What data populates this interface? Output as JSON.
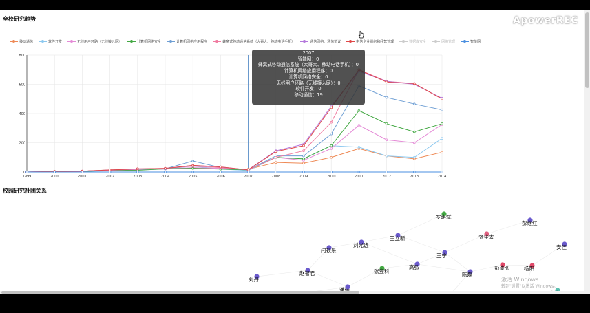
{
  "trend_title": "全校研究趋势",
  "society_title": "校园研究社团关系",
  "watermark": "ApowerREC",
  "windows_activation": {
    "line1": "激活 Windows",
    "line2": "转到\"设置\"以激活 Windows。"
  },
  "legend": [
    {
      "label": "移动通信",
      "color": "#ee8a56",
      "active": true
    },
    {
      "label": "软件开发",
      "color": "#8cc8ef",
      "active": true
    },
    {
      "label": "无线用户环路（无线接入网）",
      "color": "#e48ad6",
      "active": true
    },
    {
      "label": "计算机网络安全",
      "color": "#43a843",
      "active": true
    },
    {
      "label": "计算机网络应用程序",
      "color": "#6f9fd4",
      "active": true
    },
    {
      "label": "蜂窝式移动通信系统（大哥大、移动电话手机）",
      "color": "#f07aa0",
      "active": true
    },
    {
      "label": "通信网络、通信协议",
      "color": "#b478dc",
      "active": true
    },
    {
      "label": "电信企业组织和经营管理",
      "color": "#e04848",
      "active": true
    },
    {
      "label": "数据库安全",
      "color": "#cccccc",
      "active": false
    },
    {
      "label": "网络管理",
      "color": "#cccccc",
      "active": false
    },
    {
      "label": "智能网",
      "color": "#4a8fe0",
      "active": true
    }
  ],
  "tooltip": {
    "year": "2007",
    "lines": [
      "智能网：0",
      "蜂窝式移动通信系统（大哥大、移动电话手机）：0",
      "计算机网络应用程序：0",
      "计算机网络安全：0",
      "无线用户环路（无线接入网）：0",
      "软件开发：0",
      "移动通信：19"
    ]
  },
  "chart_data": {
    "type": "line",
    "title": "全校研究趋势",
    "x": [
      "1999",
      "2000",
      "2001",
      "2002",
      "2003",
      "2004",
      "2005",
      "2006",
      "2007",
      "2008",
      "2009",
      "2010",
      "2011",
      "2012",
      "2013",
      "2014"
    ],
    "ylim": [
      0,
      800
    ],
    "yticks": [
      "0",
      "200",
      "400",
      "600",
      "800"
    ],
    "grid": true,
    "legend_position": "top",
    "series": [
      {
        "name": "移动通信",
        "color": "#ee8a56",
        "values": [
          0,
          5,
          6,
          15,
          20,
          25,
          25,
          25,
          19,
          65,
          60,
          100,
          160,
          110,
          90,
          135
        ]
      },
      {
        "name": "软件开发",
        "color": "#8cc8ef",
        "values": [
          0,
          2,
          3,
          8,
          15,
          20,
          40,
          20,
          10,
          100,
          90,
          180,
          170,
          110,
          100,
          230
        ]
      },
      {
        "name": "无线用户环路（无线接入网）",
        "color": "#e48ad6",
        "values": [
          0,
          2,
          5,
          10,
          15,
          20,
          30,
          25,
          15,
          100,
          80,
          160,
          320,
          220,
          200,
          325
        ]
      },
      {
        "name": "计算机网络安全",
        "color": "#43a843",
        "values": [
          0,
          2,
          4,
          10,
          12,
          22,
          25,
          20,
          15,
          100,
          90,
          180,
          420,
          330,
          275,
          330
        ]
      },
      {
        "name": "计算机网络应用程序",
        "color": "#6f9fd4",
        "values": [
          0,
          3,
          5,
          12,
          20,
          22,
          75,
          30,
          15,
          110,
          110,
          260,
          590,
          510,
          465,
          425
        ]
      },
      {
        "name": "蜂窝式移动通信系统（大哥大、移动电话手机）",
        "color": "#f07aa0",
        "values": [
          0,
          3,
          6,
          12,
          20,
          25,
          40,
          30,
          15,
          100,
          145,
          340,
          700,
          620,
          605,
          500
        ]
      },
      {
        "name": "通信网络、通信协议",
        "color": "#b478dc",
        "values": [
          0,
          4,
          6,
          14,
          22,
          25,
          45,
          35,
          15,
          145,
          190,
          450,
          690,
          620,
          600,
          505
        ]
      },
      {
        "name": "电信企业组织和经营管理",
        "color": "#e04848",
        "values": [
          0,
          4,
          6,
          14,
          22,
          25,
          45,
          35,
          15,
          140,
          180,
          440,
          700,
          615,
          605,
          500
        ]
      },
      {
        "name": "智能网",
        "color": "#4a8fe0",
        "values": [
          0,
          0,
          0,
          0,
          0,
          0,
          0,
          0,
          0,
          0,
          0,
          0,
          0,
          0,
          0,
          0
        ]
      }
    ]
  },
  "graph": {
    "nodes": [
      {
        "name": "罗琪斌",
        "color": "#43a843"
      },
      {
        "name": "彭继红",
        "color": "#6a5acd"
      },
      {
        "name": "张尘太",
        "color": "#e06080"
      },
      {
        "name": "王立新",
        "color": "#6a5acd"
      },
      {
        "name": "刘光选",
        "color": "#6a5acd"
      },
      {
        "name": "闫栽乐",
        "color": "#6a5acd"
      },
      {
        "name": "王宁",
        "color": "#6a5acd"
      },
      {
        "name": "安佳",
        "color": "#6a5acd"
      },
      {
        "name": "高弘",
        "color": "#6a5acd"
      },
      {
        "name": "彭豪弘",
        "color": "#e04868"
      },
      {
        "name": "杨阳",
        "color": "#e04868"
      },
      {
        "name": "张登科",
        "color": "#43a843"
      },
      {
        "name": "陈磊",
        "color": "#6a5acd"
      },
      {
        "name": "赵智君",
        "color": "#6a5acd"
      },
      {
        "name": "刘丹",
        "color": "#6a5acd"
      },
      {
        "name": "潘佳",
        "color": "#6a5acd"
      },
      {
        "name": "郑志彪",
        "color": "#6a5acd"
      },
      {
        "name": "曹晓彤",
        "color": "#6a5acd"
      },
      {
        "name": "李东红",
        "color": "#6a5acd"
      },
      {
        "name": "车晓荣",
        "color": "#e04868"
      },
      {
        "name": "许文",
        "color": "#5bc0b0"
      }
    ]
  }
}
